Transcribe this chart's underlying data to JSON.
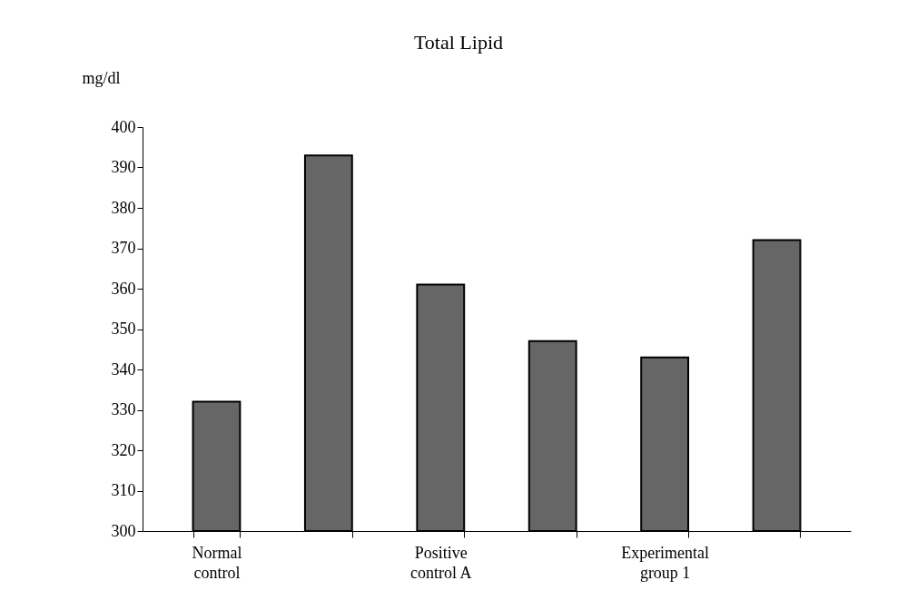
{
  "chart_data": {
    "type": "bar",
    "title": "Total Lipid",
    "ylabel": "mg/dl",
    "categories": [
      "Normal control",
      null,
      "Positive control A",
      null,
      "Experimental group 1",
      null
    ],
    "values": [
      332,
      393,
      361,
      347,
      343,
      372
    ],
    "color": "#666666",
    "ylim": [
      300,
      400
    ],
    "yticks": [
      300,
      310,
      320,
      330,
      340,
      350,
      360,
      370,
      380,
      390,
      400
    ],
    "grid": false
  }
}
